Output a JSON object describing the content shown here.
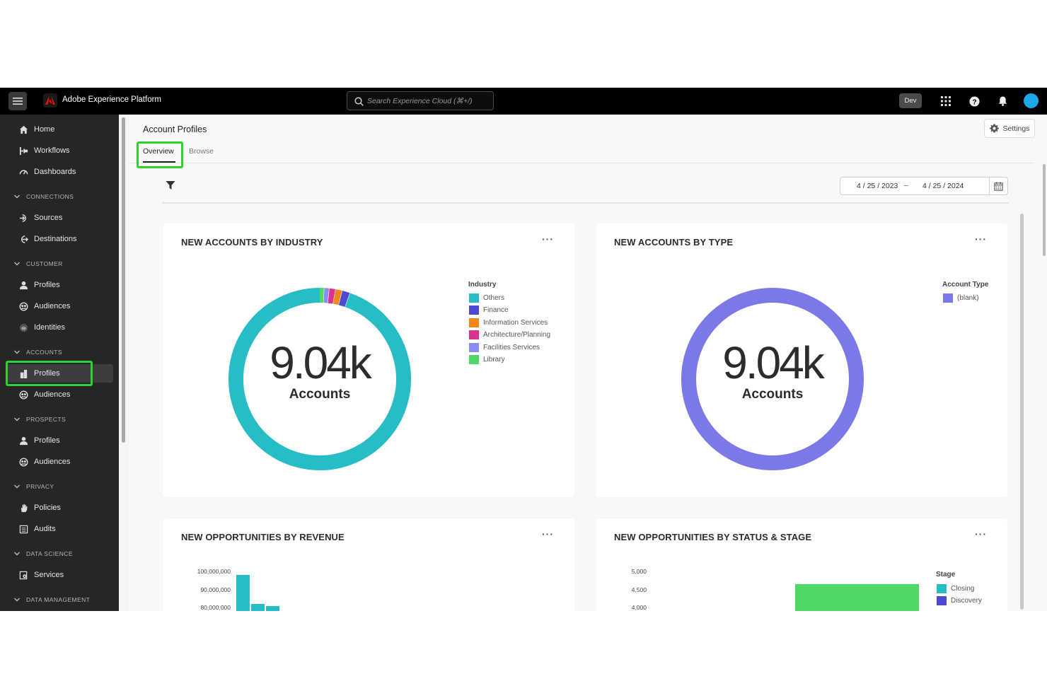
{
  "topbar": {
    "app_title": "Adobe Experience Platform",
    "search_placeholder": "Search Experience Cloud (⌘+/)",
    "env_badge": "Dev"
  },
  "sidebar": {
    "items": [
      {
        "label": "Home",
        "icon": "home-icon"
      },
      {
        "label": "Workflows",
        "icon": "workflow-icon"
      },
      {
        "label": "Dashboards",
        "icon": "dashboard-icon"
      }
    ],
    "sections": [
      {
        "label": "CONNECTIONS",
        "items": [
          {
            "label": "Sources"
          },
          {
            "label": "Destinations"
          }
        ]
      },
      {
        "label": "CUSTOMER",
        "items": [
          {
            "label": "Profiles"
          },
          {
            "label": "Audiences"
          },
          {
            "label": "Identities"
          }
        ]
      },
      {
        "label": "ACCOUNTS",
        "items": [
          {
            "label": "Profiles",
            "selected": true
          },
          {
            "label": "Audiences"
          }
        ]
      },
      {
        "label": "PROSPECTS",
        "items": [
          {
            "label": "Profiles"
          },
          {
            "label": "Audiences"
          }
        ]
      },
      {
        "label": "PRIVACY",
        "items": [
          {
            "label": "Policies"
          },
          {
            "label": "Audits"
          }
        ]
      },
      {
        "label": "DATA SCIENCE",
        "items": [
          {
            "label": "Services"
          }
        ]
      },
      {
        "label": "DATA MANAGEMENT",
        "items": []
      }
    ]
  },
  "main": {
    "page_title": "Account Profiles",
    "settings_label": "Settings",
    "tabs": [
      {
        "label": "Overview",
        "active": true
      },
      {
        "label": "Browse"
      }
    ],
    "date_start": "4 / 25 / 2023",
    "date_sep": "–",
    "date_end": "4 / 25 / 2024"
  },
  "cards": {
    "industry": {
      "title": "NEW ACCOUNTS BY INDUSTRY",
      "more": "···",
      "center_value": "9.04k",
      "center_label": "Accounts",
      "legend_title": "Industry"
    },
    "type": {
      "title": "NEW ACCOUNTS BY TYPE",
      "more": "···",
      "center_value": "9.04k",
      "center_label": "Accounts",
      "legend_title": "Account Type"
    },
    "revenue": {
      "title": "NEW OPPORTUNITIES BY REVENUE",
      "more": "···"
    },
    "status": {
      "title": "NEW OPPORTUNITIES BY STATUS & STAGE",
      "more": "···",
      "legend_title": "Stage"
    }
  },
  "colors": {
    "teal": "#26bdc5",
    "periwinkle": "#7b79e8",
    "highlight": "#2fd12f",
    "green_bar": "#4fd768"
  },
  "chart_data": [
    {
      "type": "pie",
      "title": "NEW ACCOUNTS BY INDUSTRY",
      "total_label": "9.04k",
      "categories": [
        "Others",
        "Finance",
        "Information Services",
        "Architecture/Planning",
        "Facilities Services",
        "Library"
      ],
      "colors": [
        "#26bdc5",
        "#4c4ad1",
        "#f0861c",
        "#d8338e",
        "#8c8df0",
        "#4fd768"
      ],
      "values": [
        94.6,
        1.4,
        1.2,
        1.1,
        0.9,
        0.8
      ]
    },
    {
      "type": "pie",
      "title": "NEW ACCOUNTS BY TYPE",
      "total_label": "9.04k",
      "categories": [
        "(blank)"
      ],
      "colors": [
        "#7b79e8"
      ],
      "values": [
        100
      ]
    },
    {
      "type": "bar",
      "title": "NEW OPPORTUNITIES BY REVENUE",
      "yticks": [
        "100,000,000",
        "90,000,000",
        "80,000,000"
      ],
      "ylim": [
        75000000,
        100000000
      ],
      "values": [
        98000000,
        82000000,
        81000000
      ],
      "color": "#26bdc5"
    },
    {
      "type": "bar",
      "title": "NEW OPPORTUNITIES BY STATUS & STAGE",
      "yticks": [
        "5,000",
        "4,500",
        "4,000"
      ],
      "ylim": [
        3800,
        5000
      ],
      "legend_title": "Stage",
      "series": [
        {
          "name": "Closing",
          "color": "#26bdc5"
        },
        {
          "name": "Discovery",
          "color": "#4c4ad1"
        }
      ],
      "values": [
        4650
      ],
      "bar_color": "#4fd768"
    }
  ]
}
